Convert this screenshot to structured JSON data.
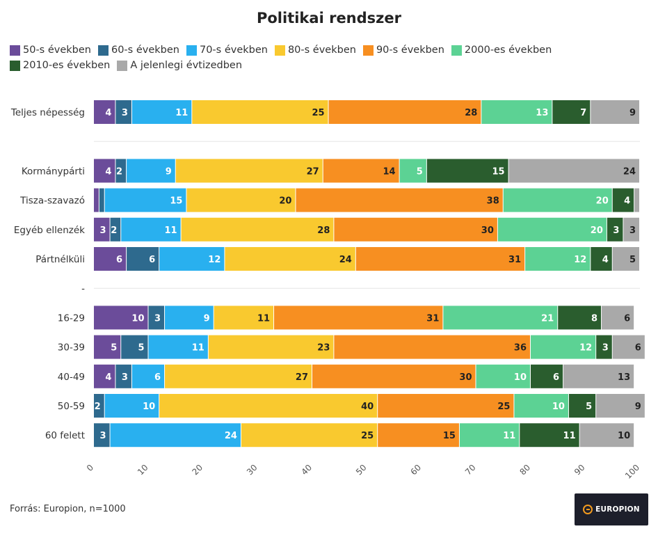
{
  "title": "Politikai rendszer",
  "source": "Forrás: Europion, n=1000",
  "logo": {
    "text": "EUROPION"
  },
  "colors": {
    "series": [
      "#6b4c9a",
      "#2e6a8e",
      "#29b0ef",
      "#f9c92f",
      "#f78f21",
      "#5cd294",
      "#2a5d2e",
      "#a9a9a9"
    ],
    "label_dark": "#222222",
    "label_light": "#ffffff",
    "divider": "#e6e6e6"
  },
  "chart_data": {
    "type": "bar",
    "orientation": "horizontal",
    "stacked": true,
    "title": "Politikai rendszer",
    "xlim": [
      0,
      100
    ],
    "x_ticks": [
      "0",
      "10",
      "20",
      "30",
      "40",
      "50",
      "60",
      "70",
      "80",
      "90",
      "100"
    ],
    "grid": false,
    "legend_position": "top",
    "categories": [
      "Teljes népesség",
      "",
      "Kormánypárti",
      "Tisza-szavazó",
      "Egyéb ellenzék",
      "Pártnélküli",
      "-",
      "16-29",
      "30-39",
      "40-49",
      "50-59",
      "60 felett"
    ],
    "series": [
      {
        "name": "50-s években",
        "values": [
          4,
          null,
          4,
          1,
          3,
          6,
          null,
          10,
          5,
          4,
          0,
          0
        ]
      },
      {
        "name": "60-s években",
        "values": [
          3,
          null,
          2,
          1,
          2,
          6,
          null,
          3,
          5,
          3,
          2,
          3
        ]
      },
      {
        "name": "70-s években",
        "values": [
          11,
          null,
          9,
          15,
          11,
          12,
          null,
          9,
          11,
          6,
          10,
          24
        ]
      },
      {
        "name": "80-s években",
        "values": [
          25,
          null,
          27,
          20,
          28,
          24,
          null,
          11,
          23,
          27,
          40,
          25
        ]
      },
      {
        "name": "90-s években",
        "values": [
          28,
          null,
          14,
          38,
          30,
          31,
          null,
          31,
          36,
          30,
          25,
          15
        ]
      },
      {
        "name": "2000-es években",
        "values": [
          13,
          null,
          5,
          20,
          20,
          12,
          null,
          21,
          12,
          10,
          10,
          11
        ]
      },
      {
        "name": "2010-es években",
        "values": [
          7,
          null,
          15,
          4,
          3,
          4,
          null,
          8,
          3,
          6,
          5,
          11
        ]
      },
      {
        "name": "A jelenlegi évtizedben",
        "values": [
          9,
          null,
          24,
          1,
          3,
          5,
          null,
          6,
          6,
          13,
          9,
          10
        ]
      }
    ],
    "value_labels": [
      [
        "4",
        "3",
        "11",
        "25",
        "28",
        "13",
        "7",
        "9"
      ],
      null,
      [
        "4",
        "2",
        "9",
        "27",
        "14",
        "5",
        "15",
        "24"
      ],
      [
        "",
        "",
        "15",
        "20",
        "38",
        "20",
        "4",
        ""
      ],
      [
        "3",
        "2",
        "11",
        "28",
        "30",
        "20",
        "3",
        "3"
      ],
      [
        "6",
        "6",
        "12",
        "24",
        "31",
        "12",
        "4",
        "5"
      ],
      null,
      [
        "10",
        "3",
        "9",
        "11",
        "31",
        "21",
        "8",
        "6"
      ],
      [
        "5",
        "5",
        "11",
        "23",
        "36",
        "12",
        "3",
        "6"
      ],
      [
        "4",
        "3",
        "6",
        "27",
        "30",
        "10",
        "6",
        "13"
      ],
      [
        "",
        "2",
        "10",
        "40",
        "25",
        "10",
        "5",
        "9"
      ],
      [
        "",
        "3",
        "24",
        "25",
        "15",
        "11",
        "11",
        "10"
      ]
    ]
  }
}
